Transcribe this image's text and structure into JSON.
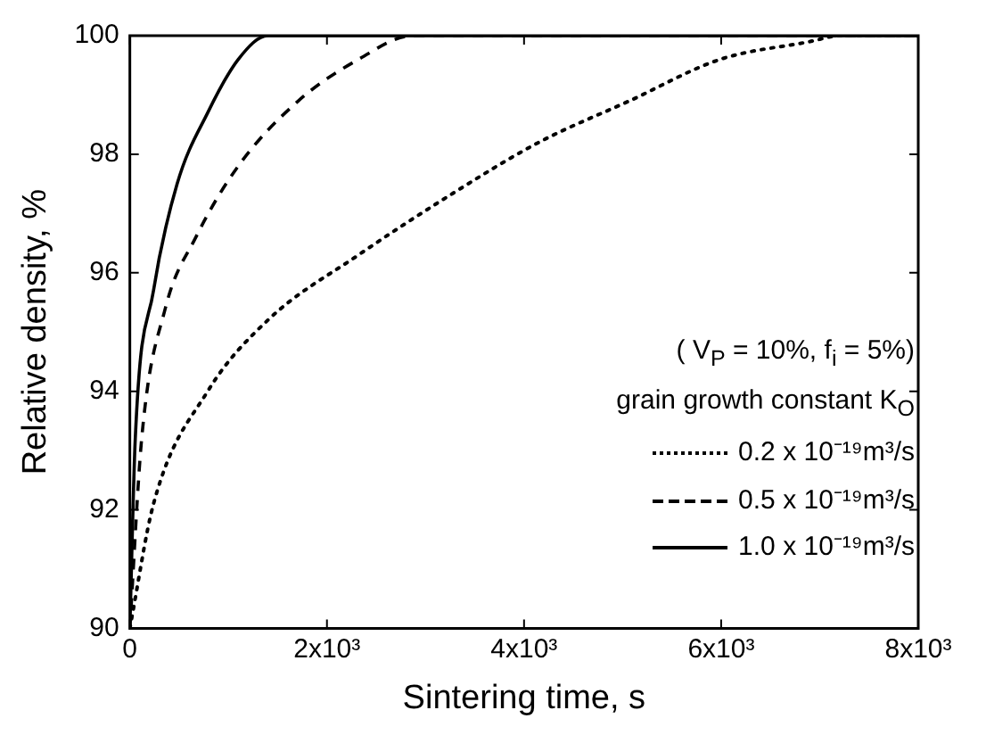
{
  "chart_data": {
    "type": "line",
    "xlabel": "Sintering time, s",
    "ylabel": "Relative density, %",
    "legend_title": "( V$_{P}$ = 10%, f$_{i}$ = 5%)\ngrain growth constant K$_{O}$",
    "xlim": [
      0,
      8000
    ],
    "ylim": [
      90,
      100
    ],
    "xticks": [
      0,
      {
        "value": 2000,
        "label": "2x10³"
      },
      {
        "value": 4000,
        "label": "4x10³"
      },
      {
        "value": 6000,
        "label": "6x10³"
      },
      {
        "value": 8000,
        "label": "8x10³"
      }
    ],
    "yticks": [
      90,
      92,
      94,
      96,
      98,
      100
    ],
    "grid": false,
    "legend": "bottom right",
    "marker": "none",
    "series": [
      {
        "name": "0.2 x 10⁻¹⁹m³/s",
        "color": "#000000",
        "line_style": "dotted",
        "x": [
          0,
          240,
          790,
          1400,
          2320,
          3240,
          4150,
          5070,
          5990,
          6900,
          7210,
          8000
        ],
        "values": [
          90,
          92.1,
          94.0,
          95.2,
          96.3,
          97.3,
          98.2,
          98.9,
          99.6,
          99.9,
          100,
          100
        ]
      },
      {
        "name": "0.5 x 10⁻¹⁹m³/s",
        "color": "#000000",
        "line_style": "dashed",
        "x": [
          0,
          120,
          360,
          670,
          1100,
          1710,
          2320,
          2870,
          8000
        ],
        "values": [
          90,
          93.2,
          95.4,
          96.6,
          97.8,
          98.9,
          99.6,
          100,
          100
        ]
      },
      {
        "name": "1.0 x 10⁻¹⁹m³/s",
        "color": "#000000",
        "line_style": "solid",
        "x": [
          0,
          55,
          240,
          480,
          790,
          1100,
          1400,
          8000
        ],
        "values": [
          90,
          93.2,
          95.7,
          97.5,
          98.7,
          99.6,
          100,
          100
        ]
      }
    ]
  }
}
